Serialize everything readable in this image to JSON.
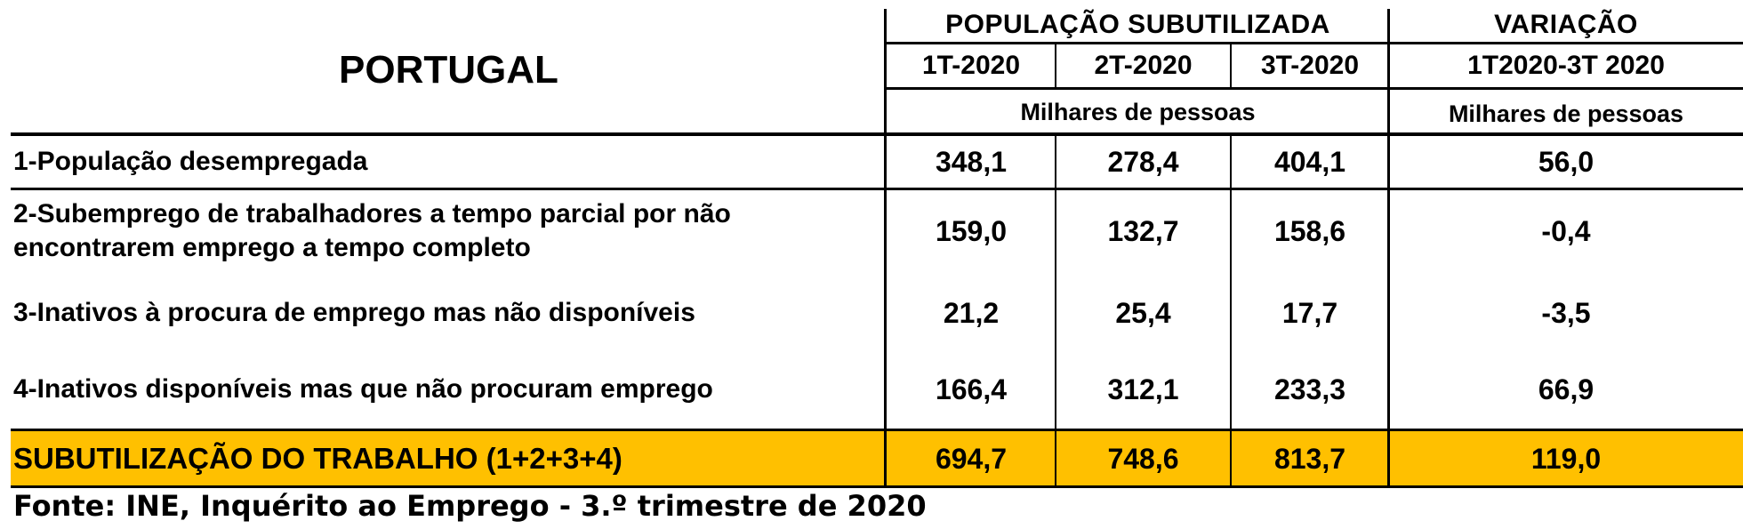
{
  "chart_data": {
    "type": "table",
    "title": "PORTUGAL",
    "header": {
      "group_main": "POPULAÇÃO SUBUTILIZADA",
      "group_var": "VARIAÇÃO",
      "periods": [
        "1T-2020",
        "2T-2020",
        "3T-2020"
      ],
      "var_period": "1T2020-3T 2020",
      "unit_main": "Milhares de pessoas",
      "unit_var": "Milhares de pessoas"
    },
    "rows": [
      {
        "label": "1-População desempregada",
        "values": [
          "348,1",
          "278,4",
          "404,1"
        ],
        "variation": "56,0"
      },
      {
        "label": "2-Subemprego de trabalhadores a tempo parcial por não encontrarem emprego a tempo completo",
        "values": [
          "159,0",
          "132,7",
          "158,6"
        ],
        "variation": "-0,4"
      },
      {
        "label": "3-Inativos à procura de emprego mas não disponíveis",
        "values": [
          "21,2",
          "25,4",
          "17,7"
        ],
        "variation": "-3,5"
      },
      {
        "label": "4-Inativos disponíveis mas que não procuram emprego",
        "values": [
          "166,4",
          "312,1",
          "233,3"
        ],
        "variation": "66,9"
      }
    ],
    "total": {
      "label": "SUBUTILIZAÇÃO DO TRABALHO (1+2+3+4)",
      "values": [
        "694,7",
        "748,6",
        "813,7"
      ],
      "variation": "119,0"
    },
    "source": "Fonte: INE, Inquérito ao Emprego - 3.º trimestre de 2020"
  },
  "colors": {
    "total_row_bg": "#FFC000",
    "lines": "#000000"
  }
}
